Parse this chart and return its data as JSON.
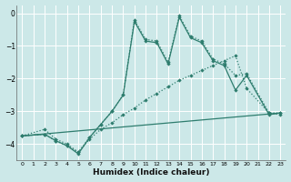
{
  "xlabel": "Humidex (Indice chaleur)",
  "bg_color": "#cce8e8",
  "grid_color": "#ffffff",
  "line_color": "#2e7d6e",
  "xlim": [
    -0.5,
    23.5
  ],
  "ylim": [
    -4.5,
    0.25
  ],
  "yticks": [
    0,
    -1,
    -2,
    -3,
    -4
  ],
  "xticks": [
    0,
    1,
    2,
    3,
    4,
    5,
    6,
    7,
    8,
    9,
    10,
    11,
    12,
    13,
    14,
    15,
    16,
    17,
    18,
    19,
    20,
    21,
    22,
    23
  ],
  "series1_x": [
    0,
    2,
    3,
    4,
    5,
    6,
    7,
    8,
    9,
    10,
    11,
    12,
    13,
    14,
    15,
    16,
    17,
    18,
    19,
    20,
    22,
    23
  ],
  "series1_y": [
    -3.75,
    -3.55,
    -3.85,
    -4.0,
    -4.25,
    -3.85,
    -3.55,
    -3.35,
    -3.1,
    -2.9,
    -2.65,
    -2.45,
    -2.25,
    -2.05,
    -1.9,
    -1.75,
    -1.6,
    -1.45,
    -1.3,
    -2.3,
    -3.05,
    -3.1
  ],
  "series2_x": [
    0,
    2,
    3,
    4,
    5,
    6,
    7,
    8,
    9,
    10,
    11,
    12,
    13,
    14,
    15,
    16,
    17,
    18,
    19,
    20,
    22,
    23
  ],
  "series2_y": [
    -3.75,
    -3.7,
    -3.9,
    -4.05,
    -4.25,
    -3.8,
    -3.4,
    -3.0,
    -2.5,
    -0.2,
    -0.8,
    -0.85,
    -1.5,
    -0.08,
    -0.7,
    -0.85,
    -1.4,
    -1.55,
    -1.9,
    -1.85,
    -3.05,
    -3.05
  ],
  "series3_x": [
    0,
    2,
    3,
    4,
    5,
    6,
    7,
    8,
    9,
    10,
    11,
    12,
    13,
    14,
    15,
    16,
    17,
    18,
    19,
    20,
    22,
    23
  ],
  "series3_y": [
    -3.75,
    -3.7,
    -3.9,
    -4.05,
    -4.3,
    -3.8,
    -3.4,
    -3.0,
    -2.5,
    -0.25,
    -0.85,
    -0.9,
    -1.55,
    -0.12,
    -0.75,
    -0.9,
    -1.45,
    -1.6,
    -2.35,
    -1.9,
    -3.1,
    -3.05
  ],
  "series4_x": [
    0,
    23
  ],
  "series4_y": [
    -3.75,
    -3.05
  ]
}
